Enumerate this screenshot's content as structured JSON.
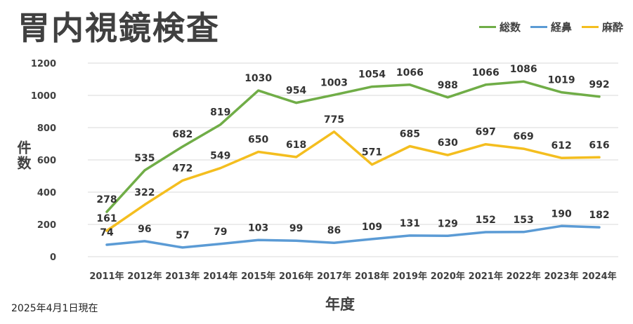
{
  "chart_data": {
    "type": "line",
    "title": "胃内視鏡検査",
    "xlabel": "年度",
    "ylabel": "件数",
    "ylim": [
      0,
      1200
    ],
    "yticks": [
      0,
      200,
      400,
      600,
      800,
      1000,
      1200
    ],
    "ytick_labels": [
      "0",
      "200",
      "400",
      "600",
      "800",
      "1000",
      "1200"
    ],
    "categories": [
      "2011年",
      "2012年",
      "2013年",
      "2014年",
      "2015年",
      "2016年",
      "2017年",
      "2018年",
      "2019年",
      "2020年",
      "2021年",
      "2022年",
      "2023年",
      "2024年"
    ],
    "grid": true,
    "legend_position": "top-right",
    "series": [
      {
        "name": "総数",
        "color": "#70AD47",
        "values": [
          278,
          535,
          682,
          819,
          1030,
          954,
          1003,
          1054,
          1066,
          988,
          1066,
          1086,
          1019,
          992
        ]
      },
      {
        "name": "経鼻",
        "color": "#5B9BD5",
        "values": [
          74,
          96,
          57,
          79,
          103,
          99,
          86,
          109,
          131,
          129,
          152,
          153,
          190,
          182
        ]
      },
      {
        "name": "麻酔",
        "color": "#F4BE1F",
        "values": [
          161,
          322,
          472,
          549,
          650,
          618,
          775,
          571,
          685,
          630,
          697,
          669,
          612,
          616
        ]
      }
    ],
    "footnote": "2025年4月1日現在"
  }
}
